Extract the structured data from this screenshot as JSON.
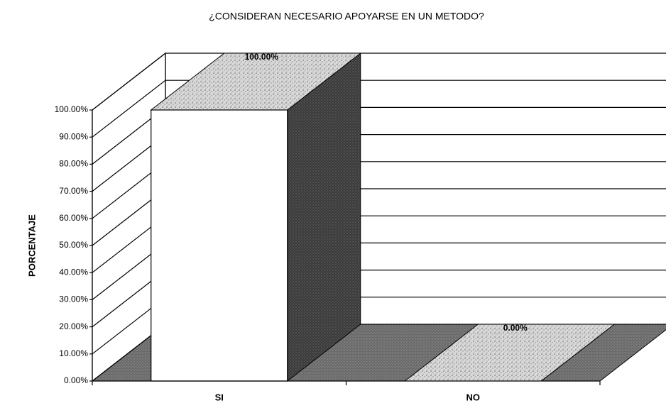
{
  "chart_data": {
    "type": "bar3d",
    "title": "¿CONSIDERAN NECESARIO APOYARSE EN UN METODO?",
    "y_label": "PORCENTAJE",
    "categories": [
      "SI",
      "NO"
    ],
    "values": [
      100,
      0
    ],
    "value_labels": [
      "100.00%",
      "0.00%"
    ],
    "ylim": [
      0,
      100
    ],
    "yticks": [
      {
        "value": 0,
        "label": "0.00%"
      },
      {
        "value": 10,
        "label": "10.00%"
      },
      {
        "value": 20,
        "label": "20.00%"
      },
      {
        "value": 30,
        "label": "30.00%"
      },
      {
        "value": 40,
        "label": "40.00%"
      },
      {
        "value": 50,
        "label": "50.00%"
      },
      {
        "value": 60,
        "label": "60.00%"
      },
      {
        "value": 70,
        "label": "70.00%"
      },
      {
        "value": 80,
        "label": "80.00%"
      },
      {
        "value": 90,
        "label": "90.00%"
      },
      {
        "value": 100,
        "label": "100.00%"
      }
    ],
    "grid": true
  }
}
